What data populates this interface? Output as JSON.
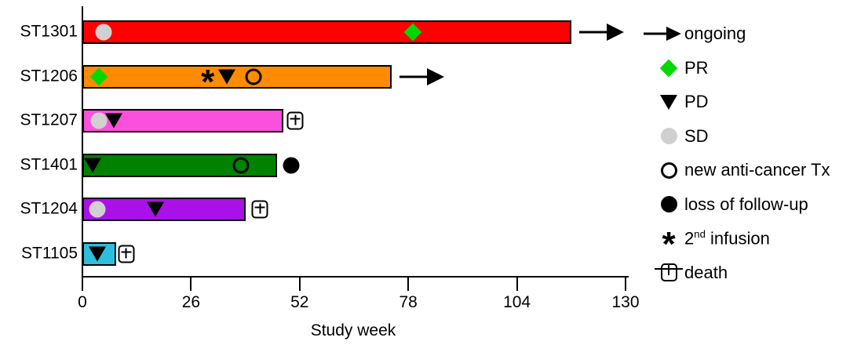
{
  "chart_data": {
    "type": "swimmer-bar",
    "title": "",
    "xlabel": "Study week",
    "x_ticks": [
      0,
      26,
      52,
      78,
      104,
      130
    ],
    "xlim": [
      0,
      130
    ],
    "grid": false,
    "legend_position": "right",
    "patients": [
      {
        "id": "ST1301",
        "color": "#ff0000",
        "duration_weeks": 117,
        "ongoing": true,
        "events": [
          {
            "type": "SD",
            "week": 5
          },
          {
            "type": "PR",
            "week": 79
          }
        ]
      },
      {
        "id": "ST1206",
        "color": "#ff8b00",
        "duration_weeks": 74,
        "ongoing": true,
        "events": [
          {
            "type": "PR",
            "week": 4
          },
          {
            "type": "second_infusion",
            "week": 30
          },
          {
            "type": "PD",
            "week": 34.5
          },
          {
            "type": "new_anti_cancer_tx",
            "week": 41
          }
        ]
      },
      {
        "id": "ST1207",
        "color": "#fa50dc",
        "duration_weeks": 48,
        "ongoing": false,
        "events": [
          {
            "type": "SD",
            "week": 4
          },
          {
            "type": "PD",
            "week": 7.5
          },
          {
            "type": "death",
            "week": 51
          }
        ]
      },
      {
        "id": "ST1401",
        "color": "#008200",
        "duration_weeks": 46.5,
        "ongoing": false,
        "events": [
          {
            "type": "PD",
            "week": 2.5
          },
          {
            "type": "new_anti_cancer_tx",
            "week": 38
          },
          {
            "type": "loss_of_follow_up",
            "week": 50
          }
        ]
      },
      {
        "id": "ST1204",
        "color": "#aa11e8",
        "duration_weeks": 39,
        "ongoing": false,
        "events": [
          {
            "type": "SD",
            "week": 3.5
          },
          {
            "type": "PD",
            "week": 17.5
          },
          {
            "type": "death",
            "week": 42.5
          }
        ]
      },
      {
        "id": "ST1105",
        "color": "#2ebedd",
        "duration_weeks": 8,
        "ongoing": false,
        "events": [
          {
            "type": "PD",
            "week": 3.5
          },
          {
            "type": "death",
            "week": 10.5
          }
        ]
      }
    ],
    "legend": [
      {
        "symbol": "arrow",
        "label": "ongoing"
      },
      {
        "symbol": "diamond_green",
        "label": "PR"
      },
      {
        "symbol": "triangle_down",
        "label": "PD"
      },
      {
        "symbol": "circle_gray",
        "label": "SD"
      },
      {
        "symbol": "circle_open",
        "label": "new anti-cancer Tx"
      },
      {
        "symbol": "circle_filled",
        "label": "loss of follow-up"
      },
      {
        "symbol": "asterisk",
        "label": "2nd infusion",
        "label_parts": {
          "base": "2",
          "sup": "nd",
          "rest": " infusion"
        }
      },
      {
        "symbol": "death_box",
        "label": "death"
      }
    ],
    "marker_colors": {
      "PR": "#00d900",
      "SD": "#d0d0d0",
      "PD": "#000000",
      "black": "#000000"
    }
  }
}
